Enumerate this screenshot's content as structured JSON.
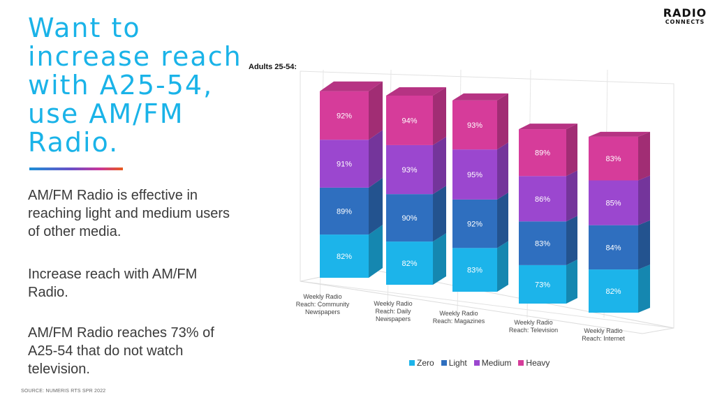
{
  "headline": "Want to increase reach with A25-54, use AM/FM Radio.",
  "paragraphs": [
    "AM/FM Radio is effective in reaching light and medium users of other media.",
    "Increase reach with AM/FM Radio.",
    "AM/FM Radio reaches 73% of A25-54 that do not watch television."
  ],
  "source": "SOURCE:  NUMERIS RTS SPR 2022",
  "logo": {
    "top": "RADIO",
    "bottom": "CONNECTS"
  },
  "chart_data": {
    "type": "bar",
    "stacked": true,
    "three_d": true,
    "title": "Adults 25-54:",
    "categories": [
      "Weekly Radio Reach: Community Newspapers",
      "Weekly Radio Reach: Daily Newspapers",
      "Weekly Radio Reach: Magazines",
      "Weekly Radio Reach: Television",
      "Weekly Radio Reach: Internet"
    ],
    "category_lines": [
      [
        "Weekly Radio",
        "Reach: Community",
        "Newspapers"
      ],
      [
        "Weekly Radio",
        "Reach: Daily",
        "Newspapers"
      ],
      [
        "Weekly Radio",
        "Reach: Magazines"
      ],
      [
        "Weekly Radio",
        "Reach: Television"
      ],
      [
        "Weekly Radio",
        "Reach: Internet"
      ]
    ],
    "series": [
      {
        "name": "Zero",
        "values": [
          82,
          82,
          83,
          73,
          82
        ],
        "color": "#1cb4ea"
      },
      {
        "name": "Light",
        "values": [
          89,
          90,
          92,
          83,
          84
        ],
        "color": "#2f6fbf"
      },
      {
        "name": "Medium",
        "values": [
          91,
          93,
          95,
          86,
          85
        ],
        "color": "#9b47cf"
      },
      {
        "name": "Heavy",
        "values": [
          92,
          94,
          93,
          89,
          83
        ],
        "color": "#d63c9a"
      }
    ],
    "value_suffix": "%",
    "legend_position": "bottom",
    "grid": true
  }
}
